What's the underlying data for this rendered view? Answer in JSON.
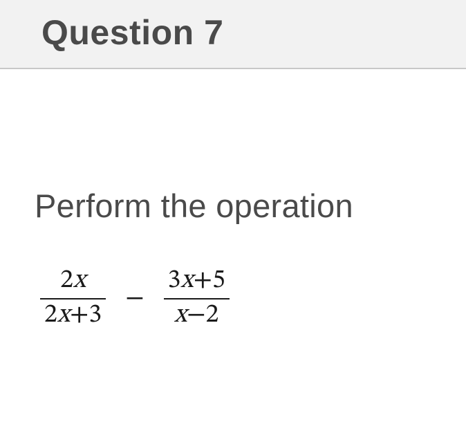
{
  "header": {
    "title": "Question 7"
  },
  "content": {
    "prompt": "Perform the operation",
    "expression": {
      "frac1": {
        "numerator": "2x",
        "denominator": "2x+3"
      },
      "operator": "−",
      "frac2": {
        "numerator": "3x+5",
        "denominator": "x−2"
      }
    }
  },
  "style": {
    "header_bg": "#f2f2f2",
    "header_border": "#c8c8c8",
    "title_color": "#4a4a4a",
    "title_fontsize": 50,
    "prompt_color": "#4a4a4a",
    "prompt_fontsize": 47,
    "math_color": "#1a1a1a",
    "math_fontsize": 38,
    "frac_bar_thickness": 2
  }
}
